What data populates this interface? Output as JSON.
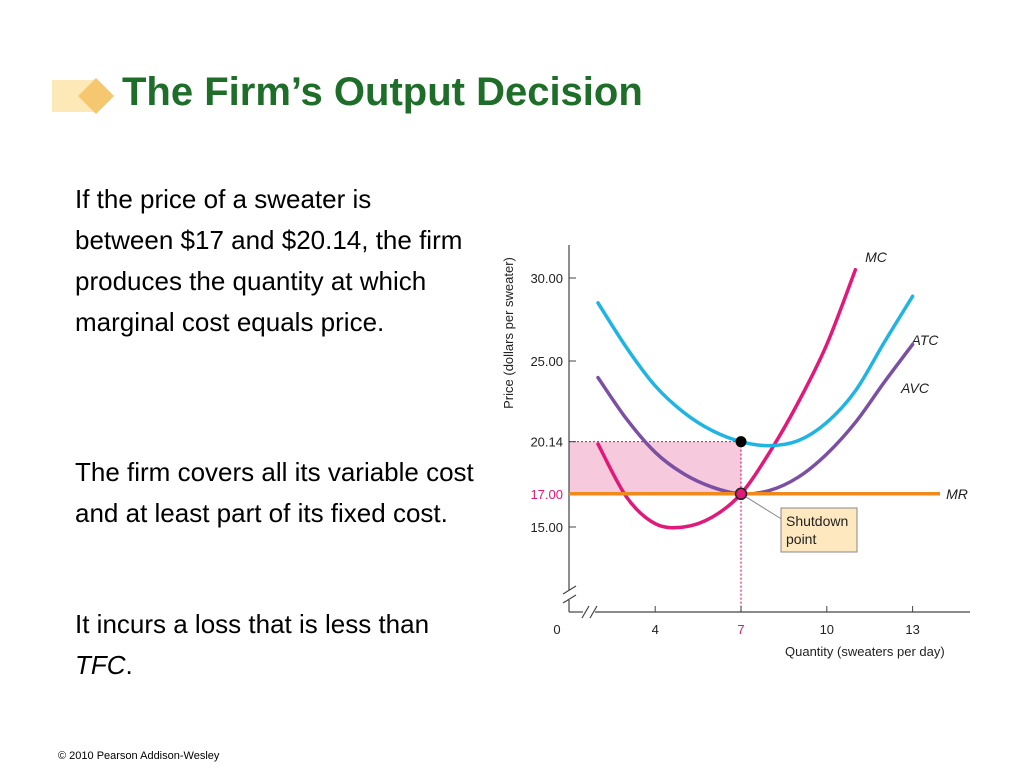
{
  "slide": {
    "title": "The Firm’s Output Decision",
    "paragraph1": "If the price of a sweater is between $17 and $20.14, the firm produces the quantity at which marginal cost equals price.",
    "paragraph2": "The firm covers all its variable cost and at least part of its fixed cost.",
    "paragraph3_text": "It incurs a loss that is less than ",
    "paragraph3_emphasis": "TFC",
    "paragraph3_end": ".",
    "footer": "© 2010 Pearson Addison-Wesley"
  },
  "chart_data": {
    "type": "line",
    "xlabel": "Quantity (sweaters per day)",
    "ylabel": "Price (dollars per sweater)",
    "xlim": [
      0,
      14.5
    ],
    "ylim": [
      10,
      31
    ],
    "x_ticks": [
      {
        "value": 0,
        "label": "0"
      },
      {
        "value": 4,
        "label": "4"
      },
      {
        "value": 7,
        "label": "7"
      },
      {
        "value": 10,
        "label": "10"
      },
      {
        "value": 13,
        "label": "13"
      }
    ],
    "y_ticks": [
      {
        "value": 15,
        "label": "15.00"
      },
      {
        "value": 17,
        "label": "17.00"
      },
      {
        "value": 20.14,
        "label": "20.14"
      },
      {
        "value": 25,
        "label": "25.00"
      },
      {
        "value": 30,
        "label": "30.00"
      }
    ],
    "series": [
      {
        "name": "MC",
        "color": "#e0197a",
        "points": [
          [
            2,
            20
          ],
          [
            3,
            16.8
          ],
          [
            4,
            15.2
          ],
          [
            5,
            15
          ],
          [
            6,
            15.6
          ],
          [
            7,
            17
          ],
          [
            8,
            19.5
          ],
          [
            9,
            22.5
          ],
          [
            10,
            26
          ],
          [
            11,
            30.5
          ]
        ]
      },
      {
        "name": "ATC",
        "color": "#1fb4e4",
        "points": [
          [
            2,
            28.5
          ],
          [
            3,
            25.8
          ],
          [
            4,
            23.5
          ],
          [
            5,
            21.9
          ],
          [
            6,
            20.8
          ],
          [
            7,
            20.14
          ],
          [
            8,
            19.9
          ],
          [
            9,
            20.2
          ],
          [
            10,
            21.3
          ],
          [
            11,
            23.2
          ],
          [
            12,
            26.1
          ],
          [
            13,
            28.9
          ]
        ]
      },
      {
        "name": "AVC",
        "color": "#7b4fa3",
        "points": [
          [
            2,
            24
          ],
          [
            3,
            21.5
          ],
          [
            4,
            19.5
          ],
          [
            5,
            18.2
          ],
          [
            6,
            17.4
          ],
          [
            7,
            17
          ],
          [
            8,
            17.2
          ],
          [
            9,
            18
          ],
          [
            10,
            19.4
          ],
          [
            11,
            21.3
          ],
          [
            12,
            23.7
          ],
          [
            13,
            26
          ]
        ]
      },
      {
        "name": "MR",
        "color": "#f08a1c",
        "points": [
          [
            0,
            17
          ],
          [
            14.5,
            17
          ]
        ]
      }
    ],
    "shaded_region": {
      "x": [
        0,
        7
      ],
      "y": [
        17,
        20.14
      ],
      "color": "#f7c9dc"
    },
    "points": [
      {
        "x": 7,
        "y": 20.14,
        "color": "#000000"
      },
      {
        "x": 7,
        "y": 17,
        "color": "#e0197a"
      }
    ],
    "annotation": {
      "text_line1": "Shutdown",
      "text_line2": "point",
      "x": 7,
      "y": 17
    },
    "colors": {
      "price_17_label": "#e0197a",
      "guide_line_7": "#e0197a"
    }
  }
}
